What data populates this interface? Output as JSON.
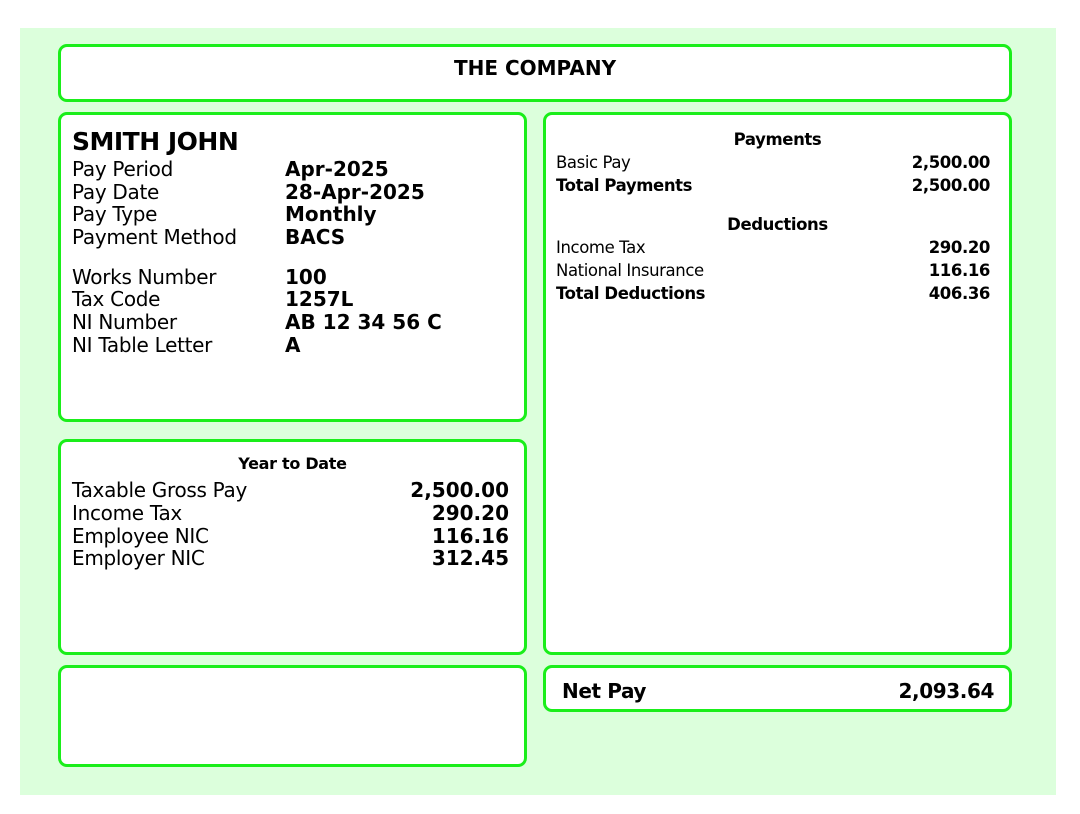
{
  "company": {
    "name": "THE COMPANY"
  },
  "employee": {
    "name": "SMITH JOHN",
    "fields": [
      {
        "label": "Pay Period",
        "value": "Apr-2025"
      },
      {
        "label": "Pay Date",
        "value": "28-Apr-2025"
      },
      {
        "label": "Pay Type",
        "value": "Monthly"
      },
      {
        "label": "Payment Method",
        "value": "BACS"
      },
      {
        "label": "Works Number",
        "value": "100"
      },
      {
        "label": "Tax Code",
        "value": "1257L"
      },
      {
        "label": "NI Number",
        "value": "AB 12 34 56 C"
      },
      {
        "label": "NI Table Letter",
        "value": "A"
      }
    ]
  },
  "ytd": {
    "title": "Year to Date",
    "rows": [
      {
        "label": "Taxable Gross Pay",
        "value": "2,500.00"
      },
      {
        "label": "Income Tax",
        "value": "290.20"
      },
      {
        "label": "Employee NIC",
        "value": "116.16"
      },
      {
        "label": "Employer NIC",
        "value": "312.45"
      }
    ]
  },
  "payments": {
    "title": "Payments",
    "rows": [
      {
        "label": "Basic Pay",
        "value": "2,500.00"
      }
    ],
    "total": {
      "label": "Total Payments",
      "value": "2,500.00"
    }
  },
  "deductions": {
    "title": "Deductions",
    "rows": [
      {
        "label": "Income Tax",
        "value": "290.20"
      },
      {
        "label": "National Insurance",
        "value": "116.16"
      }
    ],
    "total": {
      "label": "Total Deductions",
      "value": "406.36"
    }
  },
  "net_pay": {
    "label": "Net Pay",
    "value": "2,093.64"
  },
  "colors": {
    "border": "#1aee1a",
    "background": "#dcffdc"
  }
}
